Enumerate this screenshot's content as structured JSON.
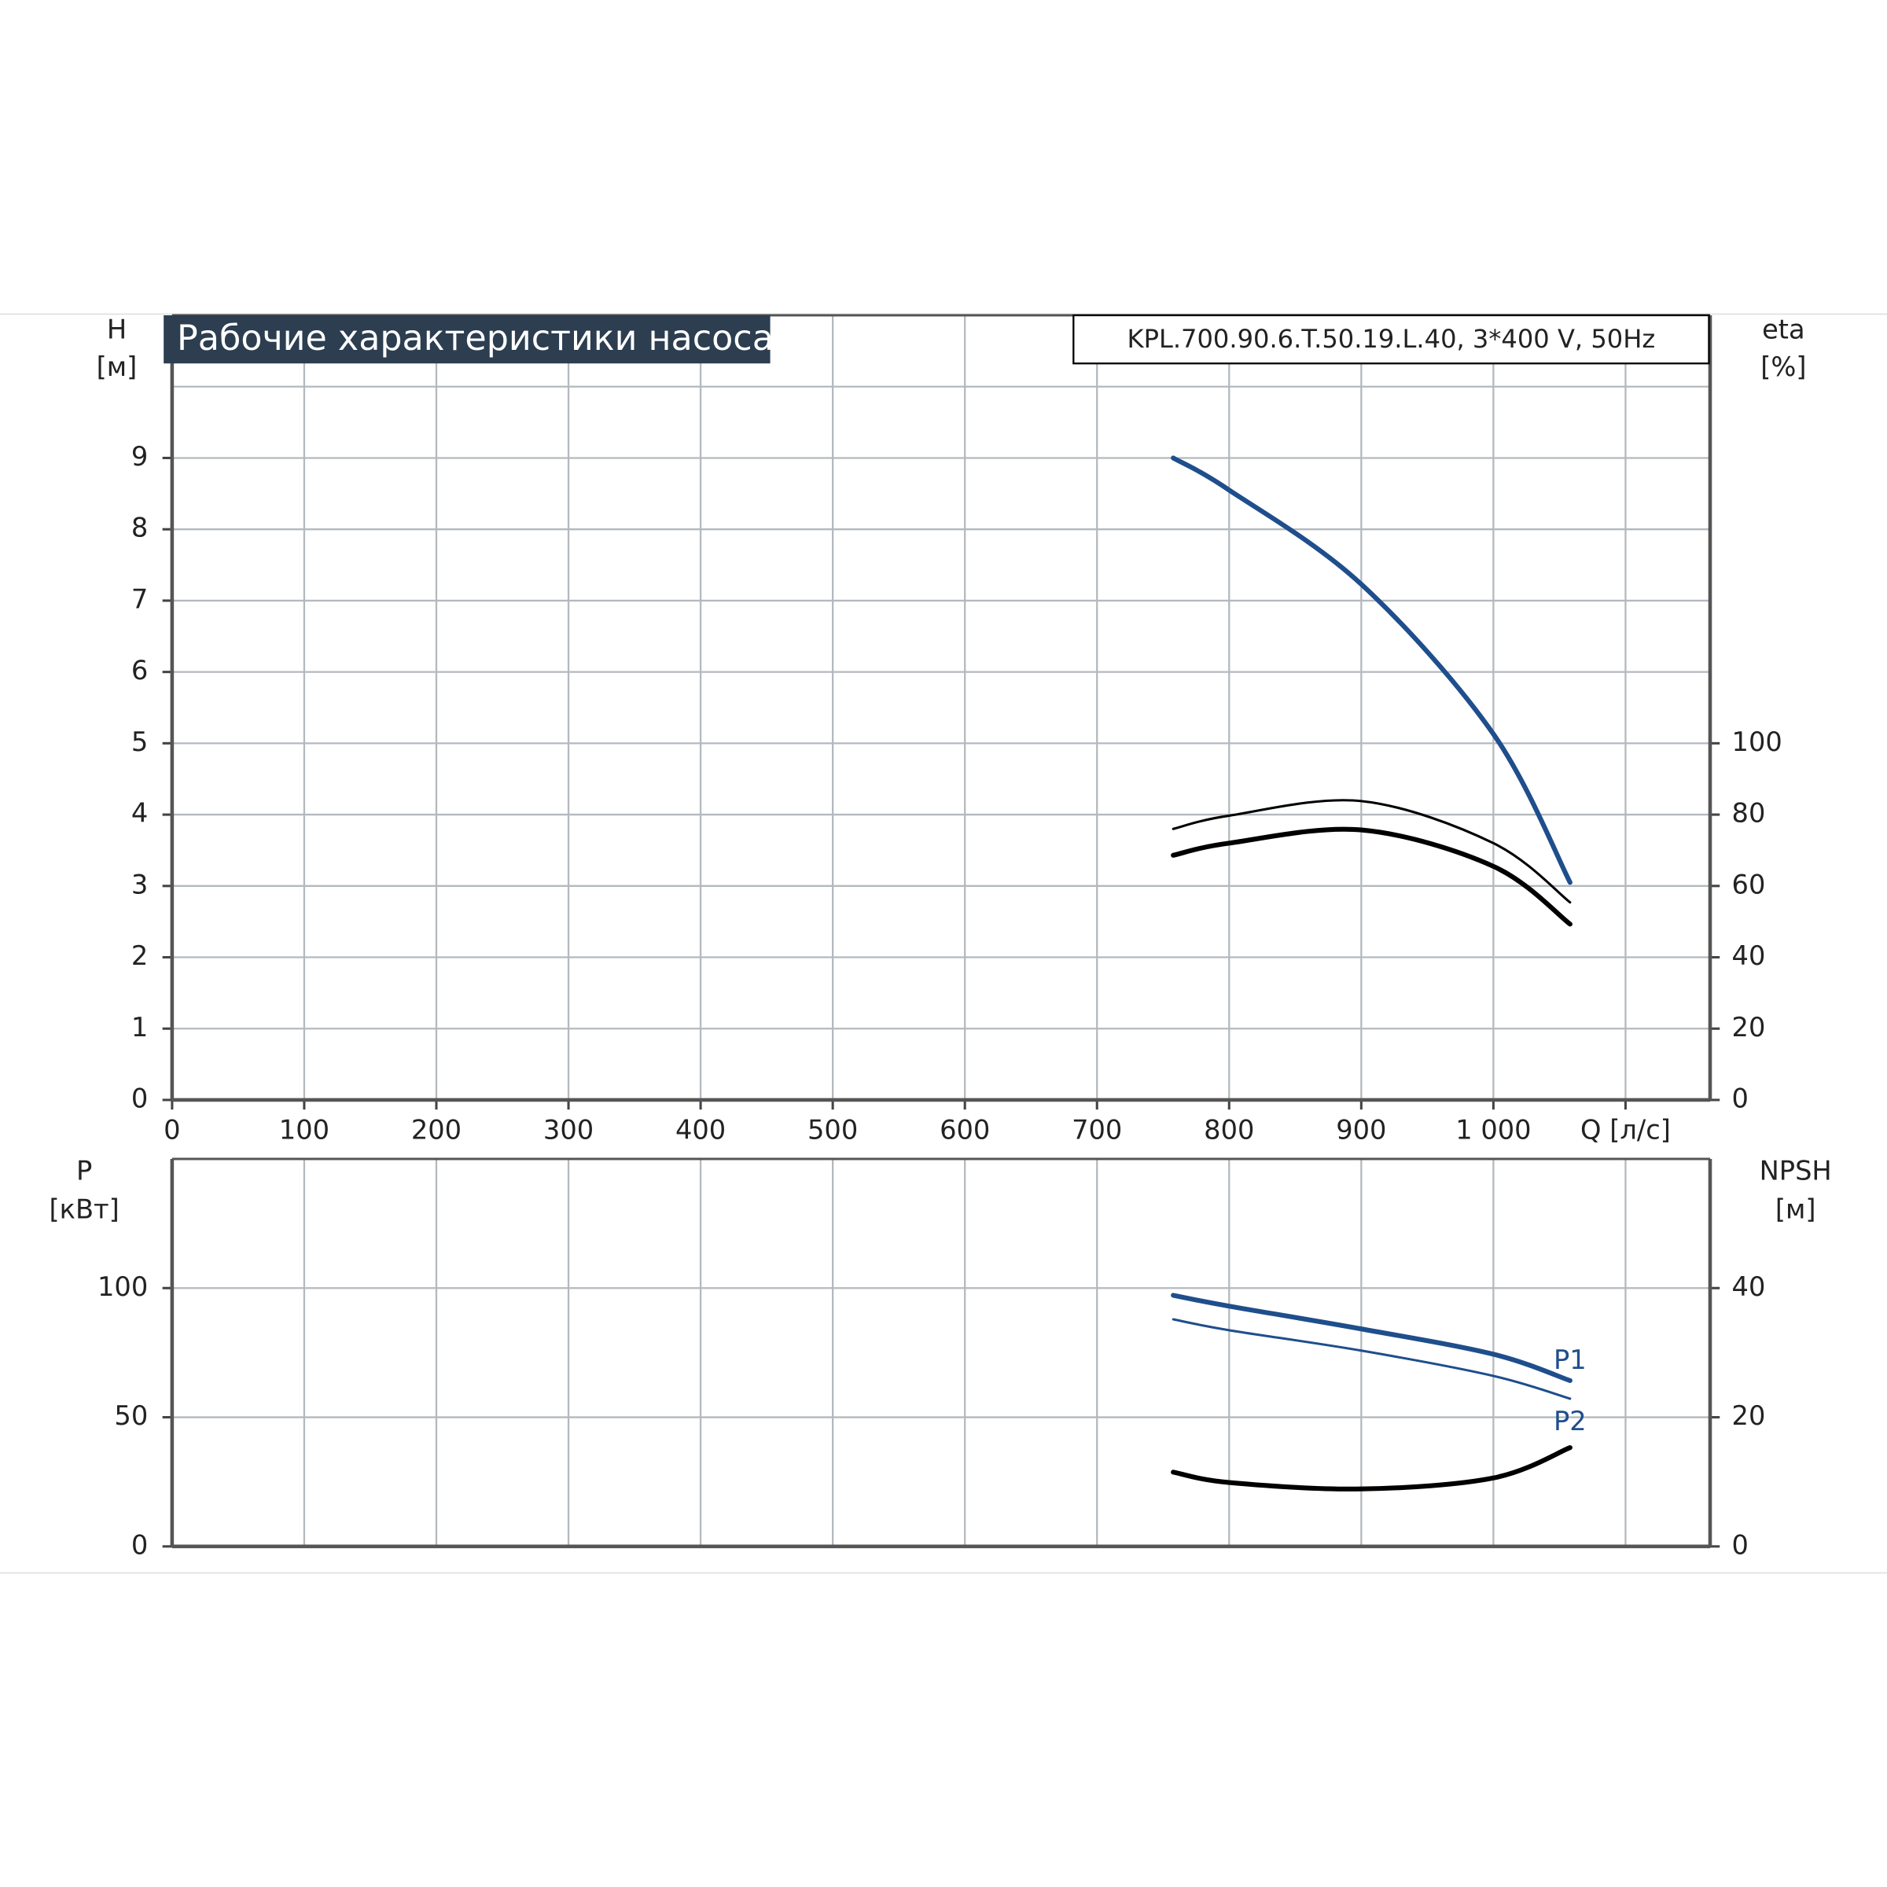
{
  "chart_data": [
    {
      "type": "line",
      "title": "Рабочие характеристики насоса",
      "subtitle": "KPL.700.90.6.T.50.19.L.40, 3*400 V, 50Hz",
      "ylabel": "H",
      "ylabel_unit": "[м]",
      "y2label": "eta",
      "y2label_unit": "[%]",
      "x": [
        757.7,
        800,
        900,
        1000,
        1058
      ],
      "xlim": [
        0,
        1164
      ],
      "xticks": [
        0,
        100,
        200,
        300,
        400,
        500,
        600,
        700,
        800,
        900,
        {
          "value": 1000,
          "label": "1 000"
        },
        {
          "value": 1100,
          "label": "Q [л/с]"
        }
      ],
      "ylim": [
        0,
        11
      ],
      "yticks": [
        0,
        1,
        2,
        3,
        4,
        5,
        6,
        7,
        8,
        9
      ],
      "y2lim": [
        0,
        220
      ],
      "y2ticks": [
        0,
        20,
        40,
        60,
        80,
        100
      ],
      "grid": true,
      "series": [
        {
          "color": "#1f4e8c",
          "width": 4,
          "values": [
            9,
            8.55,
            7.23,
            5.13,
            3.05
          ]
        },
        {
          "color": "#000000",
          "width": 2,
          "axis": "y2",
          "values": [
            76,
            79.7,
            83.8,
            72,
            55.4
          ]
        },
        {
          "color": "#000000",
          "width": 4,
          "axis": "y2",
          "values": [
            68.6,
            72,
            75.7,
            65.5,
            49.3
          ]
        }
      ]
    },
    {
      "type": "line",
      "ylabel": "P",
      "ylabel_unit": "[кВт]",
      "y2label": "NPSH",
      "y2label_unit": "[м]",
      "x": [
        757.7,
        800,
        900,
        1000,
        1058
      ],
      "xlim": [
        0,
        1164
      ],
      "ylim": [
        0,
        150
      ],
      "yticks": [
        0,
        50,
        100
      ],
      "y2lim": [
        0,
        60
      ],
      "y2ticks": [
        0,
        20,
        40
      ],
      "grid": true,
      "series": [
        {
          "name": "P1",
          "color": "#1f4e8c",
          "width": 4,
          "values": [
            97.2,
            93,
            84.2,
            74.4,
            64.2
          ]
        },
        {
          "name": "P2",
          "color": "#1f4e8c",
          "width": 2,
          "values": [
            87.9,
            83.7,
            75.8,
            66,
            57.2
          ]
        },
        {
          "color": "#000000",
          "width": 4,
          "axis": "y2",
          "values": [
            11.5,
            9.9,
            8.9,
            10.6,
            15.3
          ]
        }
      ]
    }
  ]
}
